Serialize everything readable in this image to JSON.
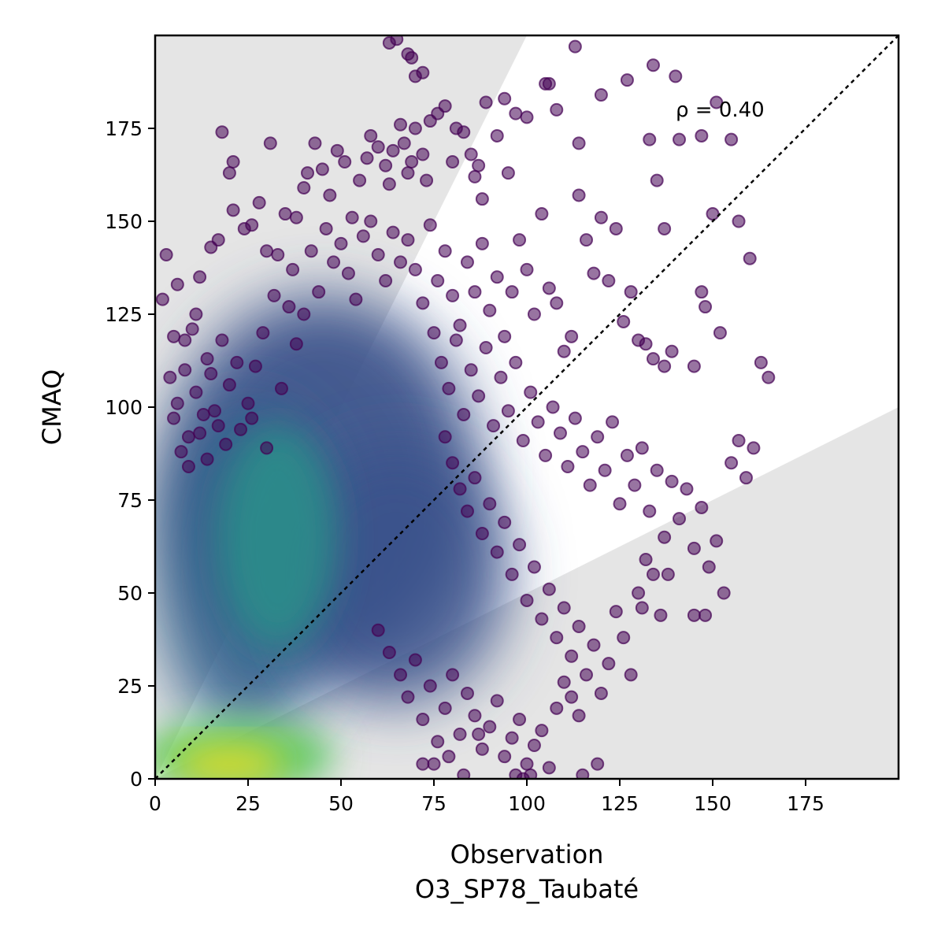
{
  "chart_data": {
    "type": "scatter",
    "xlabel": "Observation",
    "xlabel_sub": "O3_SP78_Taubaté",
    "ylabel": "CMAQ",
    "xlim": [
      0,
      200
    ],
    "ylim": [
      0,
      200
    ],
    "x_ticks": [
      0,
      25,
      50,
      75,
      100,
      125,
      150,
      175
    ],
    "y_ticks": [
      0,
      25,
      50,
      75,
      100,
      125,
      150,
      175
    ],
    "annotation": "ρ = 0.40",
    "reference_line": {
      "style": "dotted",
      "from": [
        0,
        0
      ],
      "to": [
        200,
        200
      ],
      "color": "#000000"
    },
    "acceptance_band": {
      "lower_slope": 0.5,
      "upper_slope": 2.0,
      "shaded_outside": true,
      "shade_color": "#e5e5e5"
    },
    "colormap": "viridis",
    "point_color_low_density": "#440154",
    "density_cores": [
      {
        "x": 20,
        "y": 4,
        "color": "#e0dc2a"
      },
      {
        "x": 30,
        "y": 60,
        "color": "#2a9d8a"
      },
      {
        "x": 55,
        "y": 70,
        "color": "#31688e"
      }
    ],
    "points": [
      [
        3,
        141
      ],
      [
        2,
        129
      ],
      [
        5,
        119
      ],
      [
        6,
        133
      ],
      [
        8,
        118
      ],
      [
        10,
        121
      ],
      [
        12,
        135
      ],
      [
        11,
        125
      ],
      [
        14,
        113
      ],
      [
        15,
        143
      ],
      [
        17,
        145
      ],
      [
        18,
        174
      ],
      [
        20,
        163
      ],
      [
        21,
        166
      ],
      [
        21,
        153
      ],
      [
        24,
        148
      ],
      [
        26,
        149
      ],
      [
        28,
        155
      ],
      [
        30,
        142
      ],
      [
        31,
        171
      ],
      [
        33,
        141
      ],
      [
        35,
        152
      ],
      [
        37,
        137
      ],
      [
        38,
        151
      ],
      [
        40,
        159
      ],
      [
        41,
        163
      ],
      [
        43,
        171
      ],
      [
        45,
        164
      ],
      [
        47,
        157
      ],
      [
        49,
        169
      ],
      [
        51,
        166
      ],
      [
        53,
        151
      ],
      [
        55,
        161
      ],
      [
        57,
        167
      ],
      [
        58,
        173
      ],
      [
        60,
        170
      ],
      [
        62,
        165
      ],
      [
        63,
        160
      ],
      [
        64,
        169
      ],
      [
        66,
        176
      ],
      [
        67,
        171
      ],
      [
        68,
        163
      ],
      [
        69,
        166
      ],
      [
        70,
        175
      ],
      [
        72,
        168
      ],
      [
        73,
        161
      ],
      [
        74,
        177
      ],
      [
        76,
        179
      ],
      [
        78,
        181
      ],
      [
        80,
        166
      ],
      [
        81,
        175
      ],
      [
        83,
        174
      ],
      [
        85,
        168
      ],
      [
        86,
        162
      ],
      [
        87,
        165
      ],
      [
        88,
        156
      ],
      [
        89,
        182
      ],
      [
        92,
        173
      ],
      [
        94,
        183
      ],
      [
        95,
        163
      ],
      [
        97,
        179
      ],
      [
        100,
        178
      ],
      [
        105,
        187
      ],
      [
        106,
        187
      ],
      [
        108,
        180
      ],
      [
        114,
        171
      ],
      [
        113,
        197
      ],
      [
        120,
        184
      ],
      [
        127,
        188
      ],
      [
        133,
        172
      ],
      [
        134,
        192
      ],
      [
        135,
        161
      ],
      [
        137,
        148
      ],
      [
        140,
        189
      ],
      [
        141,
        172
      ],
      [
        147,
        173
      ],
      [
        151,
        182
      ],
      [
        155,
        172
      ],
      [
        63,
        198
      ],
      [
        65,
        199
      ],
      [
        68,
        195
      ],
      [
        69,
        194
      ],
      [
        70,
        189
      ],
      [
        72,
        190
      ],
      [
        4,
        108
      ],
      [
        6,
        101
      ],
      [
        8,
        110
      ],
      [
        9,
        92
      ],
      [
        11,
        104
      ],
      [
        13,
        98
      ],
      [
        15,
        109
      ],
      [
        16,
        99
      ],
      [
        18,
        118
      ],
      [
        20,
        106
      ],
      [
        22,
        112
      ],
      [
        25,
        101
      ],
      [
        27,
        111
      ],
      [
        29,
        120
      ],
      [
        32,
        130
      ],
      [
        34,
        105
      ],
      [
        36,
        127
      ],
      [
        38,
        117
      ],
      [
        40,
        125
      ],
      [
        42,
        142
      ],
      [
        44,
        131
      ],
      [
        46,
        148
      ],
      [
        48,
        139
      ],
      [
        50,
        144
      ],
      [
        52,
        136
      ],
      [
        54,
        129
      ],
      [
        56,
        146
      ],
      [
        58,
        150
      ],
      [
        60,
        141
      ],
      [
        62,
        134
      ],
      [
        64,
        147
      ],
      [
        66,
        139
      ],
      [
        68,
        145
      ],
      [
        70,
        137
      ],
      [
        72,
        128
      ],
      [
        74,
        149
      ],
      [
        76,
        134
      ],
      [
        78,
        142
      ],
      [
        80,
        130
      ],
      [
        82,
        122
      ],
      [
        84,
        139
      ],
      [
        86,
        131
      ],
      [
        88,
        144
      ],
      [
        90,
        126
      ],
      [
        92,
        135
      ],
      [
        94,
        119
      ],
      [
        96,
        131
      ],
      [
        98,
        145
      ],
      [
        100,
        137
      ],
      [
        102,
        125
      ],
      [
        104,
        152
      ],
      [
        106,
        132
      ],
      [
        108,
        128
      ],
      [
        110,
        115
      ],
      [
        112,
        119
      ],
      [
        114,
        157
      ],
      [
        116,
        145
      ],
      [
        118,
        136
      ],
      [
        120,
        151
      ],
      [
        122,
        134
      ],
      [
        124,
        148
      ],
      [
        126,
        123
      ],
      [
        128,
        131
      ],
      [
        130,
        118
      ],
      [
        132,
        117
      ],
      [
        134,
        113
      ],
      [
        137,
        111
      ],
      [
        139,
        115
      ],
      [
        145,
        111
      ],
      [
        147,
        131
      ],
      [
        148,
        127
      ],
      [
        150,
        152
      ],
      [
        152,
        120
      ],
      [
        157,
        150
      ],
      [
        160,
        140
      ],
      [
        163,
        112
      ],
      [
        165,
        108
      ],
      [
        75,
        120
      ],
      [
        77,
        112
      ],
      [
        79,
        105
      ],
      [
        81,
        118
      ],
      [
        83,
        98
      ],
      [
        85,
        110
      ],
      [
        87,
        103
      ],
      [
        89,
        116
      ],
      [
        91,
        95
      ],
      [
        93,
        108
      ],
      [
        95,
        99
      ],
      [
        97,
        112
      ],
      [
        99,
        91
      ],
      [
        101,
        104
      ],
      [
        103,
        96
      ],
      [
        105,
        87
      ],
      [
        107,
        100
      ],
      [
        109,
        93
      ],
      [
        111,
        84
      ],
      [
        113,
        97
      ],
      [
        115,
        88
      ],
      [
        117,
        79
      ],
      [
        119,
        92
      ],
      [
        121,
        83
      ],
      [
        123,
        96
      ],
      [
        125,
        74
      ],
      [
        127,
        87
      ],
      [
        129,
        79
      ],
      [
        131,
        89
      ],
      [
        133,
        72
      ],
      [
        135,
        83
      ],
      [
        137,
        65
      ],
      [
        139,
        80
      ],
      [
        141,
        70
      ],
      [
        143,
        78
      ],
      [
        145,
        62
      ],
      [
        147,
        73
      ],
      [
        149,
        57
      ],
      [
        151,
        64
      ],
      [
        153,
        50
      ],
      [
        155,
        85
      ],
      [
        157,
        91
      ],
      [
        159,
        81
      ],
      [
        161,
        89
      ],
      [
        136,
        44
      ],
      [
        145,
        44
      ],
      [
        148,
        44
      ],
      [
        131,
        46
      ],
      [
        78,
        92
      ],
      [
        80,
        85
      ],
      [
        82,
        78
      ],
      [
        84,
        72
      ],
      [
        86,
        81
      ],
      [
        88,
        66
      ],
      [
        90,
        74
      ],
      [
        92,
        61
      ],
      [
        94,
        69
      ],
      [
        96,
        55
      ],
      [
        98,
        63
      ],
      [
        100,
        48
      ],
      [
        102,
        57
      ],
      [
        104,
        43
      ],
      [
        106,
        51
      ],
      [
        108,
        38
      ],
      [
        110,
        46
      ],
      [
        112,
        33
      ],
      [
        114,
        41
      ],
      [
        116,
        28
      ],
      [
        118,
        36
      ],
      [
        120,
        23
      ],
      [
        122,
        31
      ],
      [
        124,
        45
      ],
      [
        126,
        38
      ],
      [
        128,
        28
      ],
      [
        130,
        50
      ],
      [
        132,
        59
      ],
      [
        134,
        55
      ],
      [
        138,
        55
      ],
      [
        60,
        40
      ],
      [
        63,
        34
      ],
      [
        66,
        28
      ],
      [
        68,
        22
      ],
      [
        70,
        32
      ],
      [
        72,
        16
      ],
      [
        74,
        25
      ],
      [
        76,
        10
      ],
      [
        78,
        19
      ],
      [
        80,
        28
      ],
      [
        82,
        12
      ],
      [
        84,
        23
      ],
      [
        86,
        17
      ],
      [
        88,
        8
      ],
      [
        90,
        14
      ],
      [
        92,
        21
      ],
      [
        94,
        6
      ],
      [
        96,
        11
      ],
      [
        98,
        16
      ],
      [
        100,
        4
      ],
      [
        102,
        9
      ],
      [
        104,
        13
      ],
      [
        106,
        3
      ],
      [
        108,
        19
      ],
      [
        110,
        26
      ],
      [
        112,
        22
      ],
      [
        114,
        17
      ],
      [
        115,
        1
      ],
      [
        119,
        4
      ],
      [
        97,
        1
      ],
      [
        99,
        0
      ],
      [
        101,
        1
      ],
      [
        75,
        4
      ],
      [
        79,
        6
      ],
      [
        83,
        1
      ],
      [
        72,
        4
      ],
      [
        87,
        12
      ],
      [
        5,
        97
      ],
      [
        7,
        88
      ],
      [
        9,
        84
      ],
      [
        12,
        93
      ],
      [
        14,
        86
      ],
      [
        17,
        95
      ],
      [
        19,
        90
      ],
      [
        23,
        94
      ],
      [
        26,
        97
      ],
      [
        30,
        89
      ]
    ]
  }
}
